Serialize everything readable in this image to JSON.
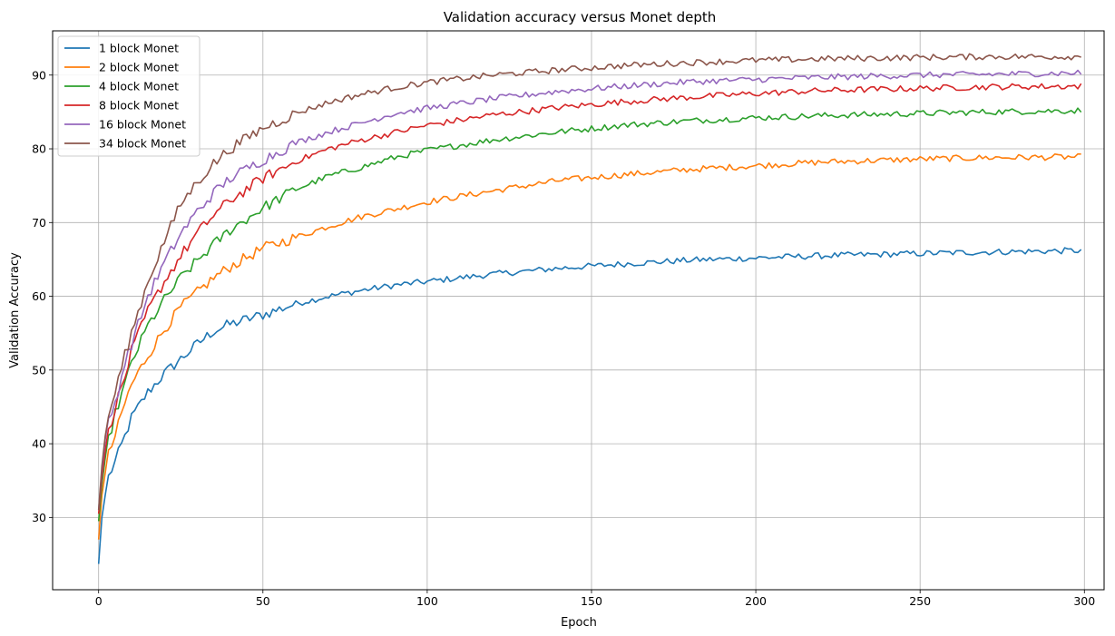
{
  "chart_data": {
    "type": "line",
    "title": "Validation accuracy versus Monet depth",
    "xlabel": "Epoch",
    "ylabel": "Validation Accuracy",
    "xlim": [
      -14,
      306
    ],
    "ylim": [
      20.2,
      96.0
    ],
    "xticks": [
      0,
      50,
      100,
      150,
      200,
      250,
      300
    ],
    "yticks": [
      30,
      40,
      50,
      60,
      70,
      80,
      90
    ],
    "grid": true,
    "legend_position": "top-left",
    "epochs": 300,
    "series": [
      {
        "name": "1 block Monet",
        "color": "#1f77b4",
        "anchors": [
          [
            0,
            23.7
          ],
          [
            1,
            30
          ],
          [
            2,
            33
          ],
          [
            3,
            35.5
          ],
          [
            5,
            37.5
          ],
          [
            8,
            41
          ],
          [
            10,
            43.5
          ],
          [
            15,
            47
          ],
          [
            20,
            49.5
          ],
          [
            25,
            51.5
          ],
          [
            30,
            53.5
          ],
          [
            35,
            55.3
          ],
          [
            40,
            56.2
          ],
          [
            50,
            57.5
          ],
          [
            60,
            59
          ],
          [
            70,
            60
          ],
          [
            80,
            60.8
          ],
          [
            90,
            61.5
          ],
          [
            100,
            62
          ],
          [
            120,
            63
          ],
          [
            140,
            63.8
          ],
          [
            160,
            64.4
          ],
          [
            180,
            64.9
          ],
          [
            200,
            65.2
          ],
          [
            220,
            65.5
          ],
          [
            250,
            65.8
          ],
          [
            270,
            66
          ],
          [
            299,
            66.2
          ]
        ],
        "noise": 0.35
      },
      {
        "name": "2 block Monet",
        "color": "#ff7f0e",
        "anchors": [
          [
            0,
            27
          ],
          [
            1,
            33
          ],
          [
            2,
            36
          ],
          [
            3,
            38.5
          ],
          [
            5,
            41
          ],
          [
            8,
            45.5
          ],
          [
            10,
            48
          ],
          [
            15,
            52
          ],
          [
            20,
            55.5
          ],
          [
            25,
            58.5
          ],
          [
            30,
            60.5
          ],
          [
            35,
            62.5
          ],
          [
            40,
            64
          ],
          [
            50,
            66.5
          ],
          [
            60,
            68
          ],
          [
            70,
            69.5
          ],
          [
            80,
            70.8
          ],
          [
            90,
            71.8
          ],
          [
            100,
            72.8
          ],
          [
            120,
            74.3
          ],
          [
            140,
            75.7
          ],
          [
            160,
            76.5
          ],
          [
            180,
            77.2
          ],
          [
            200,
            77.7
          ],
          [
            220,
            78.2
          ],
          [
            250,
            78.6
          ],
          [
            270,
            78.8
          ],
          [
            299,
            78.9
          ]
        ],
        "noise": 0.35
      },
      {
        "name": "4 block Monet",
        "color": "#2ca02c",
        "anchors": [
          [
            0,
            29.5
          ],
          [
            1,
            34.5
          ],
          [
            2,
            38
          ],
          [
            3,
            40.5
          ],
          [
            5,
            44
          ],
          [
            8,
            48
          ],
          [
            10,
            51
          ],
          [
            15,
            56
          ],
          [
            20,
            59.5
          ],
          [
            25,
            62.5
          ],
          [
            30,
            64.8
          ],
          [
            35,
            67
          ],
          [
            40,
            69
          ],
          [
            50,
            72
          ],
          [
            60,
            74.5
          ],
          [
            70,
            76.3
          ],
          [
            80,
            77.5
          ],
          [
            90,
            78.8
          ],
          [
            100,
            79.8
          ],
          [
            120,
            81.2
          ],
          [
            140,
            82.3
          ],
          [
            160,
            83.2
          ],
          [
            180,
            83.8
          ],
          [
            200,
            84.2
          ],
          [
            220,
            84.5
          ],
          [
            250,
            84.8
          ],
          [
            270,
            85
          ],
          [
            299,
            85.2
          ]
        ],
        "noise": 0.35
      },
      {
        "name": "8 block Monet",
        "color": "#d62728",
        "anchors": [
          [
            0,
            30.5
          ],
          [
            1,
            35.5
          ],
          [
            2,
            39
          ],
          [
            3,
            41.5
          ],
          [
            5,
            45
          ],
          [
            8,
            49
          ],
          [
            10,
            52.5
          ],
          [
            15,
            58
          ],
          [
            20,
            62
          ],
          [
            25,
            65.5
          ],
          [
            30,
            68.5
          ],
          [
            35,
            71
          ],
          [
            40,
            73
          ],
          [
            50,
            76
          ],
          [
            60,
            78.3
          ],
          [
            70,
            80
          ],
          [
            80,
            81.2
          ],
          [
            90,
            82.2
          ],
          [
            100,
            83.2
          ],
          [
            120,
            84.6
          ],
          [
            140,
            85.6
          ],
          [
            160,
            86.4
          ],
          [
            180,
            87
          ],
          [
            200,
            87.5
          ],
          [
            220,
            87.9
          ],
          [
            250,
            88.2
          ],
          [
            270,
            88.4
          ],
          [
            299,
            88.5
          ]
        ],
        "noise": 0.35
      },
      {
        "name": "16 block Monet",
        "color": "#9467bd",
        "anchors": [
          [
            0,
            31
          ],
          [
            1,
            36.5
          ],
          [
            2,
            40.5
          ],
          [
            3,
            43
          ],
          [
            5,
            45.5
          ],
          [
            8,
            51
          ],
          [
            10,
            53.5
          ],
          [
            15,
            60
          ],
          [
            20,
            64.5
          ],
          [
            25,
            68.5
          ],
          [
            30,
            71.5
          ],
          [
            35,
            74
          ],
          [
            40,
            76
          ],
          [
            50,
            78.5
          ],
          [
            60,
            80.8
          ],
          [
            70,
            82.3
          ],
          [
            80,
            83.5
          ],
          [
            90,
            84.8
          ],
          [
            100,
            85.5
          ],
          [
            120,
            86.8
          ],
          [
            140,
            87.8
          ],
          [
            160,
            88.5
          ],
          [
            180,
            89.1
          ],
          [
            200,
            89.4
          ],
          [
            220,
            89.7
          ],
          [
            250,
            90
          ],
          [
            270,
            90.1
          ],
          [
            299,
            90.3
          ]
        ],
        "noise": 0.35
      },
      {
        "name": "34 block Monet",
        "color": "#8c564b",
        "anchors": [
          [
            0,
            31
          ],
          [
            1,
            37
          ],
          [
            2,
            41
          ],
          [
            3,
            43.5
          ],
          [
            5,
            47
          ],
          [
            8,
            52
          ],
          [
            10,
            55
          ],
          [
            15,
            62
          ],
          [
            20,
            67.5
          ],
          [
            25,
            72.5
          ],
          [
            30,
            75.5
          ],
          [
            35,
            78
          ],
          [
            40,
            80
          ],
          [
            50,
            82.8
          ],
          [
            60,
            84.8
          ],
          [
            70,
            86.3
          ],
          [
            80,
            87.4
          ],
          [
            90,
            88.3
          ],
          [
            100,
            89
          ],
          [
            120,
            90
          ],
          [
            140,
            90.7
          ],
          [
            160,
            91.3
          ],
          [
            180,
            91.7
          ],
          [
            200,
            92
          ],
          [
            220,
            92.2
          ],
          [
            250,
            92.4
          ],
          [
            270,
            92.5
          ],
          [
            299,
            92.5
          ]
        ],
        "noise": 0.35
      }
    ]
  }
}
